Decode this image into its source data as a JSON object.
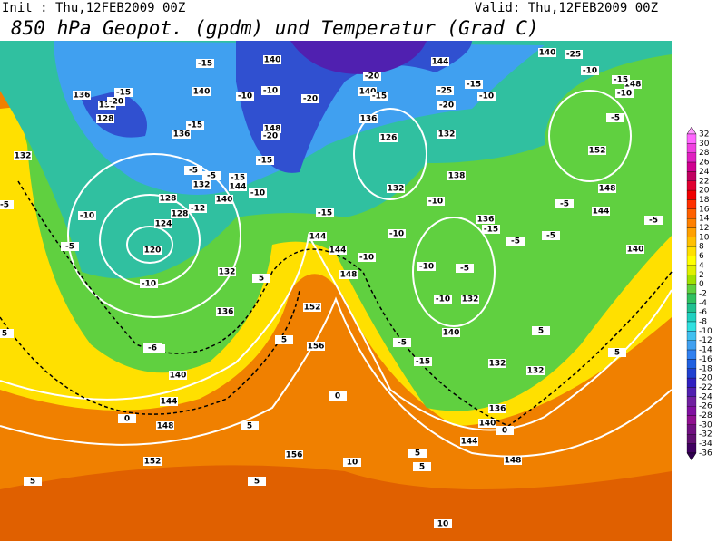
{
  "header": {
    "init": "Init : Thu,12FEB2009 00Z",
    "valid": "Valid: Thu,12FEB2009 00Z",
    "title": "850 hPa Geopot. (gpdm) und Temperatur (Grad C)"
  },
  "colorbar": {
    "labels": [
      32,
      30,
      28,
      26,
      24,
      22,
      20,
      18,
      16,
      14,
      12,
      10,
      8,
      6,
      4,
      2,
      0,
      -2,
      -4,
      -6,
      -8,
      -10,
      -12,
      -14,
      -16,
      -18,
      -20,
      -22,
      -24,
      -26,
      -28,
      -30,
      -32,
      -34,
      -36
    ],
    "colors": [
      "#ff66ff",
      "#f040e0",
      "#e020c0",
      "#d00090",
      "#c00060",
      "#e00030",
      "#f00000",
      "#ff3000",
      "#ff6000",
      "#ff8000",
      "#ffa000",
      "#ffc000",
      "#ffe000",
      "#ffff00",
      "#e0f000",
      "#a0e000",
      "#60d040",
      "#30c060",
      "#20c090",
      "#20d0c0",
      "#30e0e0",
      "#40c0f0",
      "#40a0f0",
      "#3080f0",
      "#2060e0",
      "#2040d0",
      "#3020c0",
      "#5020b0",
      "#7020a0",
      "#8010a0",
      "#901090",
      "#701080",
      "#601070",
      "#400060"
    ],
    "top_color": "#ff99ff",
    "bottom_color": "#300050"
  },
  "contour_labels": [
    136,
    132,
    128,
    140,
    136,
    132,
    128,
    124,
    120,
    132,
    136,
    140,
    144,
    148,
    152,
    156,
    156,
    152,
    148,
    144,
    144,
    140,
    144,
    148,
    140,
    136,
    126,
    132,
    132,
    138,
    136,
    132,
    140,
    132,
    132,
    136,
    140,
    144,
    148,
    152,
    148,
    144,
    140,
    144,
    140,
    148,
    132,
    128,
    140,
    -15,
    -20,
    -15,
    -15,
    -10,
    -10,
    -20,
    -20,
    -15,
    -20,
    -15,
    -25,
    -20,
    -15,
    -10,
    -25,
    -10,
    -15,
    -10,
    -5,
    -5,
    -5,
    -15,
    -10,
    -12,
    -10,
    -5,
    -10,
    -5,
    -15,
    -10,
    -10,
    -10,
    -15,
    -5,
    -5,
    -5,
    -10,
    -5,
    -10,
    -5,
    -15,
    -5,
    5,
    5,
    0,
    5,
    5,
    10,
    5,
    10,
    5,
    5,
    5,
    5,
    5,
    0,
    0,
    -6,
    -5
  ]
}
